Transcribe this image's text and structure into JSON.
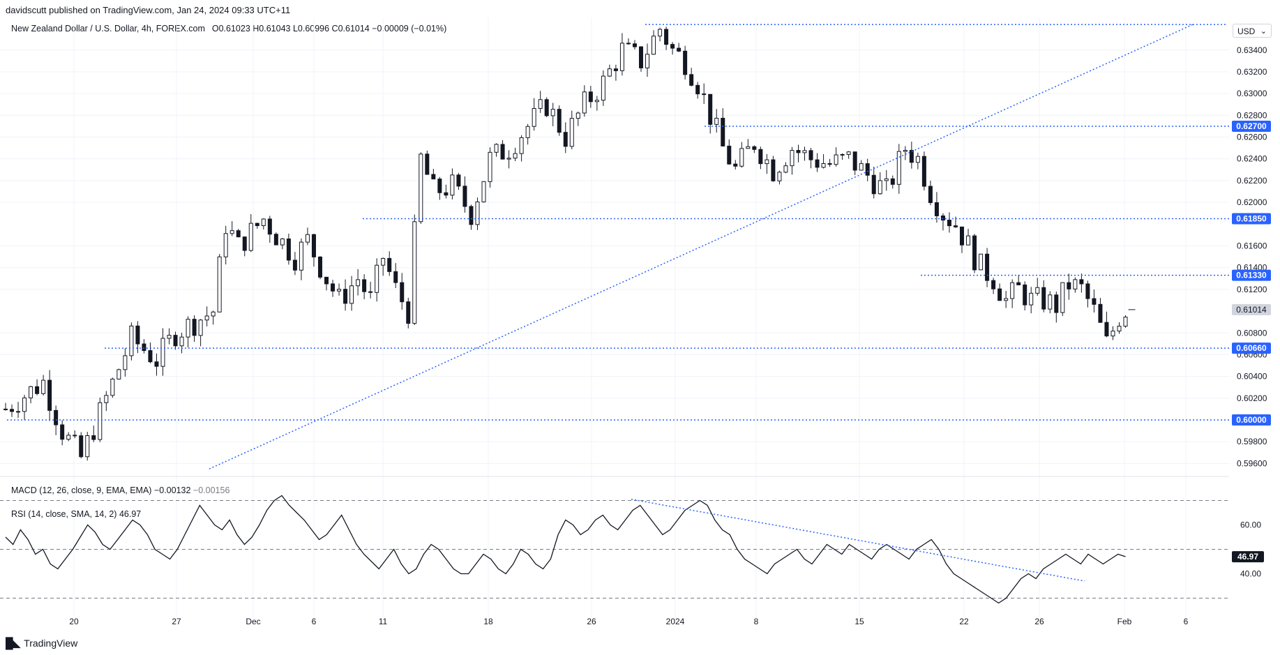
{
  "header": {
    "published_by": "davidscutt published on TradingView.com, Jan 24, 2024 09:33 UTC+11"
  },
  "legend": {
    "symbol": "New Zealand Dollar / U.S. Dollar, 4h, FOREX.com",
    "ohlc": "O0.61023  H0.61043  L0.60996  C0.61014  −0.00009 (−0.01%)"
  },
  "currency": "USD",
  "macd_legend": {
    "label": "MACD (12, 26, close, 9, EMA, EMA)",
    "v1": "−0.00132",
    "v2": "−0.00156"
  },
  "rsi_legend": {
    "label": "RSI (14, close, SMA, 14, 2)",
    "value": "46.97"
  },
  "brand": "TradingView",
  "chart_data": [
    {
      "type": "candlestick",
      "title": "New Zealand Dollar / U.S. Dollar, 4h, FOREX.com",
      "ylim": [
        0.595,
        0.637
      ],
      "yticks": [
        "0.63400",
        "0.63200",
        "0.63000",
        "0.62800",
        "0.62600",
        "0.62400",
        "0.62200",
        "0.62000",
        "0.61600",
        "0.61400",
        "0.61200",
        "0.60800",
        "0.60600",
        "0.60400",
        "0.60200",
        "0.59800",
        "0.59600"
      ],
      "xticks": [
        "20",
        "27",
        "Dec",
        "6",
        "11",
        "18",
        "26",
        "2024",
        "8",
        "15",
        "22",
        "26",
        "Feb",
        "6"
      ],
      "close_path": [
        [
          0,
          0.601
        ],
        [
          6,
          0.6035
        ],
        [
          9,
          0.599
        ],
        [
          12,
          0.5965
        ],
        [
          16,
          0.602
        ],
        [
          20,
          0.6075
        ],
        [
          24,
          0.6055
        ],
        [
          27,
          0.608
        ],
        [
          33,
          0.61
        ],
        [
          35,
          0.618
        ],
        [
          37,
          0.616
        ],
        [
          41,
          0.6185
        ],
        [
          43,
          0.617
        ],
        [
          46,
          0.615
        ],
        [
          48,
          0.6165
        ],
        [
          51,
          0.613
        ],
        [
          53,
          0.611
        ],
        [
          56,
          0.613
        ],
        [
          58,
          0.611
        ],
        [
          60,
          0.615
        ],
        [
          62,
          0.612
        ],
        [
          64,
          0.61
        ],
        [
          66,
          0.624
        ],
        [
          68,
          0.621
        ],
        [
          71,
          0.6215
        ],
        [
          74,
          0.619
        ],
        [
          77,
          0.624
        ],
        [
          80,
          0.625
        ],
        [
          83,
          0.627
        ],
        [
          86,
          0.629
        ],
        [
          89,
          0.626
        ],
        [
          92,
          0.629
        ],
        [
          95,
          0.631
        ],
        [
          98,
          0.634
        ],
        [
          101,
          0.633
        ],
        [
          104,
          0.636
        ],
        [
          106,
          0.634
        ],
        [
          108,
          0.633
        ],
        [
          110,
          0.631
        ],
        [
          112,
          0.628
        ],
        [
          114,
          0.625
        ],
        [
          116,
          0.623
        ],
        [
          119,
          0.6255
        ],
        [
          122,
          0.623
        ],
        [
          125,
          0.625
        ],
        [
          128,
          0.624
        ],
        [
          131,
          0.6235
        ],
        [
          134,
          0.624
        ],
        [
          137,
          0.6225
        ],
        [
          140,
          0.621
        ],
        [
          143,
          0.625
        ],
        [
          145,
          0.624
        ],
        [
          147,
          0.621
        ],
        [
          149,
          0.619
        ],
        [
          151,
          0.618
        ],
        [
          153,
          0.616
        ],
        [
          155,
          0.614
        ],
        [
          157,
          0.613
        ],
        [
          159,
          0.611
        ],
        [
          161,
          0.612
        ],
        [
          163,
          0.611
        ],
        [
          165,
          0.611
        ],
        [
          167,
          0.6105
        ],
        [
          169,
          0.6125
        ],
        [
          171,
          0.612
        ],
        [
          173,
          0.61
        ],
        [
          175,
          0.607
        ],
        [
          177,
          0.6095
        ],
        [
          178,
          0.6101
        ]
      ],
      "levels": [
        {
          "value": 0.627,
          "label": "0.62700"
        },
        {
          "value": 0.6185,
          "label": "0.61850"
        },
        {
          "value": 0.6133,
          "label": "0.61330"
        },
        {
          "value": 0.6066,
          "label": "0.60660"
        },
        {
          "value": 0.6,
          "label": "0.60000"
        }
      ],
      "top_level": 0.63635,
      "trendline": {
        "from": [
          18.5,
          0.5955
        ],
        "to": [
          150,
          0.63635
        ]
      },
      "last_price": {
        "value": 0.61014,
        "label": "0.61014"
      }
    },
    {
      "type": "line",
      "title": "RSI (14, close, SMA, 14, 2)",
      "ylim": [
        25,
        75
      ],
      "yticks": [
        "60.00",
        "40.00"
      ],
      "bands": [
        70,
        50,
        30
      ],
      "values": [
        55,
        52,
        58,
        54,
        48,
        50,
        44,
        42,
        46,
        50,
        55,
        60,
        57,
        52,
        50,
        54,
        58,
        62,
        60,
        56,
        50,
        48,
        46,
        50,
        56,
        62,
        68,
        64,
        60,
        58,
        62,
        56,
        52,
        55,
        60,
        66,
        70,
        72,
        68,
        65,
        62,
        58,
        54,
        56,
        60,
        64,
        58,
        52,
        48,
        45,
        42,
        46,
        50,
        44,
        40,
        42,
        48,
        52,
        50,
        46,
        42,
        40,
        40,
        44,
        48,
        46,
        42,
        40,
        44,
        50,
        48,
        44,
        42,
        46,
        56,
        62,
        60,
        56,
        58,
        62,
        64,
        60,
        58,
        62,
        66,
        68,
        64,
        60,
        56,
        58,
        62,
        66,
        68,
        70,
        68,
        62,
        58,
        56,
        50,
        46,
        44,
        42,
        40,
        44,
        46,
        48,
        50,
        46,
        44,
        48,
        52,
        50,
        48,
        52,
        50,
        48,
        46,
        50,
        52,
        50,
        48,
        46,
        50,
        52,
        54,
        50,
        44,
        40,
        38,
        36,
        34,
        32,
        30,
        28,
        30,
        34,
        38,
        40,
        38,
        42,
        44,
        46,
        48,
        46,
        44,
        48,
        46,
        44,
        46,
        48,
        47
      ],
      "trendline": {
        "from": [
          137,
          70
        ],
        "to": [
          198,
          37
        ]
      },
      "last_value": {
        "value": 46.97,
        "label": "46.97"
      }
    }
  ],
  "colors": {
    "candle": "#131722",
    "level_line": "#2962ff",
    "level_label_bg": "#2962ff",
    "last_price_bg": "#d1d4dc",
    "rsi_line": "#131722",
    "band": "#787b86",
    "grid": "#f0f3fa",
    "text": "#131722"
  }
}
